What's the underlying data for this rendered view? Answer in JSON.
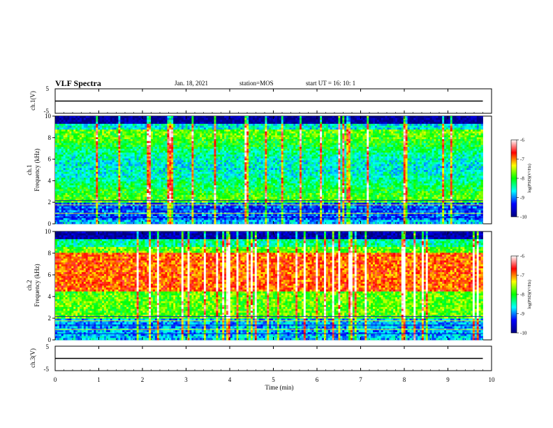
{
  "header": {
    "title": "VLF Spectra",
    "date": "Jan. 18, 2021",
    "station": "station=MOS",
    "start": "start UT =   16: 10: 1"
  },
  "chart_data": [
    {
      "type": "line",
      "ylabel": "ch.1(V)",
      "xlim": [
        0,
        10
      ],
      "ylim": [
        -5,
        5
      ],
      "yticks": [
        "5",
        "-5"
      ],
      "series": [
        {
          "x": [
            0,
            9.8
          ],
          "y": [
            0,
            0
          ]
        }
      ]
    },
    {
      "type": "heatmap",
      "ylabel_line1": "ch.1",
      "ylabel_line2": "Frequency (kHz)",
      "xlim": [
        0,
        10
      ],
      "ylim": [
        0,
        10
      ],
      "yticks": [
        "0",
        "2",
        "4",
        "6",
        "8",
        "10"
      ],
      "data_xmax": 9.8,
      "value_label": "log(PSD)(V²/Hz)",
      "value_range": [
        -10,
        -6
      ],
      "value_ticks": [
        "-6",
        "-7",
        "-8",
        "-9",
        "-10"
      ],
      "colormap": [
        "#000080",
        "#0000ff",
        "#00ffff",
        "#00ff00",
        "#ffff00",
        "#ff0000",
        "#ffffff"
      ]
    },
    {
      "type": "heatmap",
      "ylabel_line1": "ch.2",
      "ylabel_line2": "Frequency (kHz)",
      "xlim": [
        0,
        10
      ],
      "ylim": [
        0,
        10
      ],
      "yticks": [
        "0",
        "2",
        "4",
        "6",
        "8",
        "10"
      ],
      "data_xmax": 9.8,
      "value_label": "log(PSD)(V²/Hz)",
      "value_range": [
        -10,
        -6
      ],
      "value_ticks": [
        "-6",
        "-7",
        "-8",
        "-9",
        "-10"
      ],
      "colormap": [
        "#000080",
        "#0000ff",
        "#00ffff",
        "#00ff00",
        "#ffff00",
        "#ff0000",
        "#ffffff"
      ]
    },
    {
      "type": "line",
      "ylabel": "ch.3(V)",
      "xlim": [
        0,
        10
      ],
      "ylim": [
        -5,
        5
      ],
      "yticks": [
        "5",
        "-5"
      ],
      "series": [
        {
          "x": [
            0,
            9.8
          ],
          "y": [
            0,
            0
          ]
        }
      ]
    }
  ],
  "xaxis": {
    "label": "Time (min)",
    "ticks": [
      "0",
      "1",
      "2",
      "3",
      "4",
      "5",
      "6",
      "7",
      "8",
      "9",
      "10"
    ]
  }
}
